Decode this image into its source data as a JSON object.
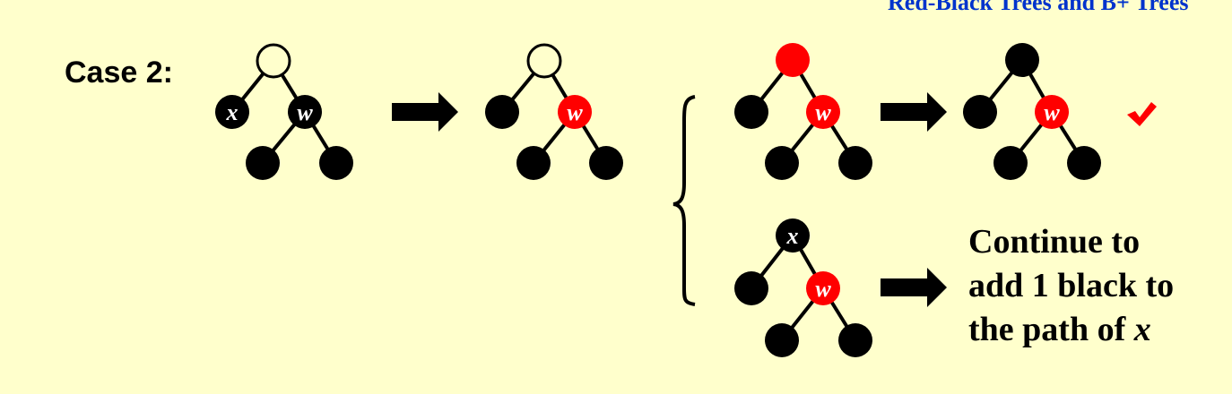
{
  "header": {
    "title": "Red-Black Trees and B+ Trees"
  },
  "case_label": "Case 2:",
  "labels": {
    "x": "x",
    "w": "w"
  },
  "note": {
    "line1": "Continue to",
    "line2": "add 1 black to",
    "line3_prefix": "the path of ",
    "line3_var": "x"
  },
  "colors": {
    "background": "#FFFFCC",
    "black": "#000000",
    "red": "#FF0000",
    "white": "#FFFFFF",
    "check": "#FF0000",
    "title": "#0033CC"
  }
}
